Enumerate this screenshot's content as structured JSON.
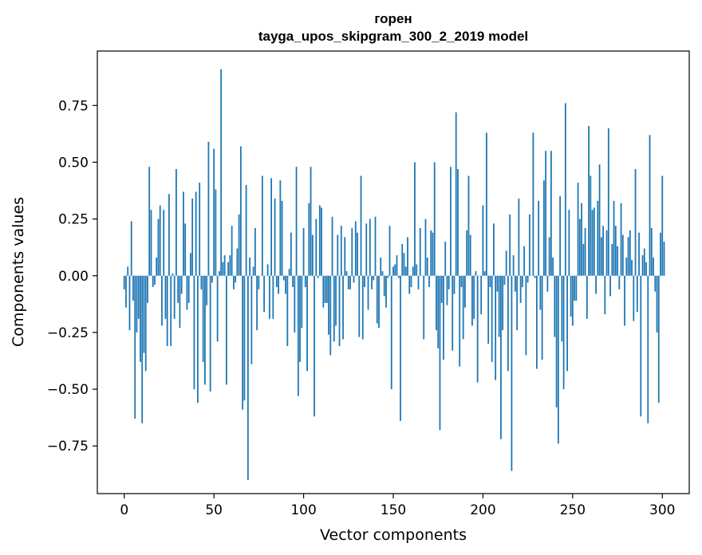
{
  "chart_data": {
    "type": "bar",
    "title": "горен",
    "subtitle": "tayga_upos_skipgram_300_2_2019 model",
    "xlabel": "Vector components",
    "ylabel": "Components values",
    "xlim": [
      -15,
      315
    ],
    "ylim": [
      -0.96,
      0.99
    ],
    "xticks": [
      0,
      50,
      100,
      150,
      200,
      250,
      300
    ],
    "yticks": [
      -0.75,
      -0.5,
      -0.25,
      0.0,
      0.25,
      0.5,
      0.75
    ],
    "ytick_labels": [
      "−0.75",
      "−0.50",
      "−0.25",
      "0.00",
      "0.25",
      "0.50",
      "0.75"
    ],
    "grid": false,
    "color": "#1f77b4",
    "values": [
      -0.06,
      -0.14,
      0.04,
      -0.24,
      0.24,
      -0.11,
      -0.63,
      -0.25,
      -0.19,
      -0.38,
      -0.65,
      -0.34,
      -0.42,
      -0.12,
      0.48,
      0.29,
      -0.05,
      -0.04,
      0.08,
      0.25,
      0.31,
      -0.22,
      0.29,
      -0.19,
      -0.31,
      0.36,
      -0.31,
      0.01,
      -0.19,
      0.47,
      -0.12,
      -0.23,
      -0.08,
      0.37,
      0.23,
      -0.15,
      -0.12,
      0.1,
      0.34,
      -0.5,
      0.37,
      -0.56,
      0.41,
      -0.06,
      -0.38,
      -0.48,
      -0.13,
      0.59,
      -0.51,
      -0.03,
      0.56,
      0.38,
      -0.29,
      0.02,
      0.91,
      0.06,
      0.09,
      -0.48,
      0.06,
      0.09,
      0.22,
      -0.06,
      -0.03,
      0.12,
      0.27,
      0.57,
      -0.59,
      -0.55,
      0.4,
      -0.9,
      0.08,
      -0.39,
      0.04,
      0.21,
      -0.24,
      -0.06,
      0.0,
      0.44,
      -0.16,
      0.0,
      0.05,
      -0.19,
      0.43,
      -0.19,
      0.34,
      -0.05,
      -0.08,
      0.42,
      0.33,
      -0.02,
      -0.08,
      -0.31,
      0.03,
      0.19,
      -0.05,
      -0.25,
      0.48,
      -0.53,
      -0.38,
      -0.23,
      0.21,
      -0.05,
      -0.42,
      0.32,
      0.48,
      0.18,
      -0.62,
      0.25,
      -0.01,
      0.31,
      0.3,
      -0.14,
      -0.12,
      -0.12,
      -0.26,
      -0.35,
      0.26,
      -0.29,
      -0.22,
      0.18,
      -0.31,
      0.22,
      -0.28,
      0.17,
      0.02,
      -0.06,
      -0.06,
      0.21,
      -0.03,
      0.24,
      0.19,
      -0.27,
      0.44,
      -0.28,
      -0.05,
      0.23,
      -0.15,
      0.25,
      -0.06,
      -0.02,
      0.26,
      -0.21,
      -0.23,
      0.08,
      0.02,
      -0.09,
      -0.14,
      -0.01,
      0.22,
      -0.5,
      0.04,
      0.05,
      0.09,
      -0.01,
      -0.64,
      0.14,
      0.1,
      0.04,
      0.17,
      -0.08,
      -0.05,
      0.04,
      0.5,
      0.05,
      -0.06,
      0.21,
      0.0,
      -0.28,
      0.25,
      0.08,
      -0.05,
      0.2,
      0.19,
      0.5,
      -0.24,
      -0.32,
      -0.68,
      -0.12,
      -0.37,
      0.15,
      -0.13,
      -0.06,
      0.48,
      -0.33,
      -0.08,
      0.72,
      0.47,
      -0.4,
      -0.05,
      -0.28,
      -0.14,
      0.2,
      0.44,
      0.18,
      -0.22,
      -0.19,
      0.02,
      -0.47,
      0.0,
      -0.17,
      0.31,
      0.02,
      0.63,
      -0.3,
      -0.05,
      -0.38,
      0.23,
      -0.46,
      -0.07,
      -0.27,
      -0.72,
      -0.24,
      -0.04,
      0.11,
      -0.42,
      0.27,
      -0.86,
      0.09,
      -0.07,
      -0.24,
      0.34,
      -0.12,
      -0.05,
      0.13,
      -0.35,
      -0.03,
      0.27,
      0.0,
      0.63,
      -0.01,
      -0.41,
      0.33,
      -0.15,
      -0.37,
      0.42,
      0.55,
      -0.07,
      0.17,
      0.55,
      0.08,
      -0.27,
      -0.58,
      -0.74,
      0.35,
      -0.29,
      -0.5,
      0.76,
      -0.42,
      0.29,
      -0.18,
      -0.22,
      -0.11,
      -0.11,
      0.41,
      0.25,
      0.32,
      0.14,
      0.21,
      -0.19,
      0.66,
      0.44,
      0.29,
      0.3,
      -0.08,
      0.33,
      0.49,
      0.17,
      0.22,
      -0.17,
      0.2,
      0.65,
      -0.09,
      0.14,
      0.33,
      0.22,
      0.13,
      -0.06,
      0.32,
      0.18,
      -0.22,
      0.08,
      0.17,
      0.2,
      0.07,
      -0.2,
      0.47,
      -0.16,
      0.19,
      -0.62,
      0.09,
      0.12,
      0.06,
      -0.65,
      0.62,
      0.21,
      0.08,
      -0.07,
      -0.25,
      -0.56,
      0.19,
      0.44,
      0.15
    ]
  }
}
